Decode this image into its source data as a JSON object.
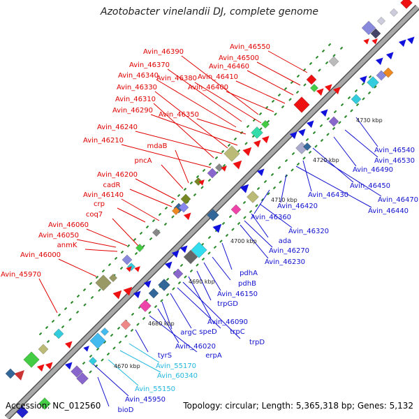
{
  "header": {
    "title": "Azotobacter vinelandii DJ, complete genome"
  },
  "footer": {
    "accession": "Accession: NC_012560",
    "summary": "Topology: circular; Length: 5,365,318 bp; Genes: 5,132"
  },
  "colors": {
    "top_strand_label": "#e00000",
    "bottom_strand_label": "#1010d0",
    "rna_label": "#22b8e0",
    "backbone": "#a8a8a8",
    "backbone_edge": "#505050",
    "tick": "#2a8a2a"
  },
  "scale_ticks": [
    "4670 kbp",
    "4680 kbp",
    "4690 kbp",
    "4700 kbp",
    "4710 kbp",
    "4720 kbp",
    "4730 kbp"
  ],
  "top_labels": [
    "Avin_45970",
    "Avin_46000",
    "anmK",
    "Avin_46050",
    "Avin_46060",
    "coq7",
    "crp",
    "Avin_46140",
    "cadR",
    "Avin_46200",
    "pncA",
    "mdaB",
    "Avin_46210",
    "Avin_46240",
    "Avin_46290",
    "Avin_46350",
    "Avin_46310",
    "Avin_46330",
    "Avin_46340",
    "Avin_46380",
    "Avin_46370",
    "Avin_46400",
    "Avin_46390",
    "Avin_46410",
    "Avin_46460",
    "Avin_46500",
    "Avin_46550"
  ],
  "bottom_labels": [
    "bioD",
    "Avin_45950",
    "Avin_55150",
    "Avin_60340",
    "Avin_55170",
    "tyrS",
    "erpA",
    "Avin_46020",
    "argC",
    "speD",
    "trpC",
    "trpD",
    "Avin_46090",
    "trpGD",
    "Avin_46150",
    "pdhB",
    "pdhA",
    "Avin_46230",
    "Avin_46270",
    "ada",
    "Avin_46320",
    "Avin_46360",
    "Avin_46420",
    "Avin_46440",
    "Avin_46430",
    "Avin_46470",
    "Avin_46450",
    "Avin_46490",
    "Avin_46530",
    "Avin_46540"
  ]
}
